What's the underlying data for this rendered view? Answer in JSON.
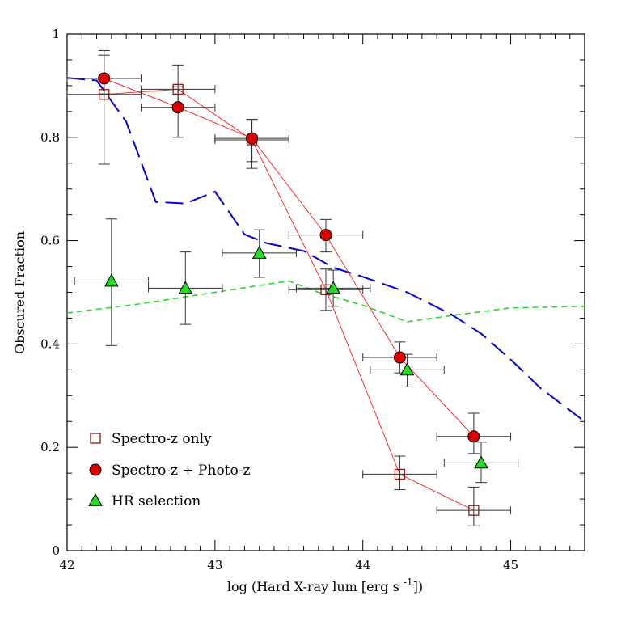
{
  "chart_data": {
    "type": "scatter",
    "title": "",
    "xlabel": "log (Hard X-ray lum [erg s ",
    "xlabel_sup": "-1",
    "xlabel_end": "])",
    "ylabel": "Obscured Fraction",
    "xlim": [
      42,
      45.5
    ],
    "ylim": [
      0,
      1
    ],
    "x_ticks": [
      "42",
      "43",
      "44",
      "45"
    ],
    "y_ticks": [
      "0",
      "0.2",
      "0.4",
      "0.6",
      "0.8",
      "1"
    ],
    "grid": false,
    "legend_position": "bottom-left",
    "series": [
      {
        "name": "Spectro-z only",
        "marker": "open-square",
        "color": "#8b1a1a",
        "line_color": "#ff2a2a",
        "points": [
          {
            "x": 42.25,
            "y": 0.883,
            "xerr": 0.25,
            "yerr_lo": 0.135,
            "yerr_hi": 0.085
          },
          {
            "x": 42.75,
            "y": 0.893,
            "xerr": 0.25,
            "yerr_lo": 0.035,
            "yerr_hi": 0.047
          },
          {
            "x": 43.25,
            "y": 0.795,
            "xerr": 0.25,
            "yerr_lo": 0.055,
            "yerr_hi": 0.04
          },
          {
            "x": 43.75,
            "y": 0.505,
            "xerr": 0.25,
            "yerr_lo": 0.04,
            "yerr_hi": 0.04
          },
          {
            "x": 44.25,
            "y": 0.148,
            "xerr": 0.25,
            "yerr_lo": 0.03,
            "yerr_hi": 0.035
          },
          {
            "x": 44.75,
            "y": 0.078,
            "xerr": 0.25,
            "yerr_lo": 0.03,
            "yerr_hi": 0.045
          }
        ]
      },
      {
        "name": "Spectro-z + Photo-z",
        "marker": "filled-circle",
        "color": "#dd0000",
        "line_color": "#ff2a2a",
        "points": [
          {
            "x": 42.25,
            "y": 0.914,
            "xerr": 0.25,
            "yerr_lo": 0.03,
            "yerr_hi": 0.045
          },
          {
            "x": 42.75,
            "y": 0.858,
            "xerr": 0.25,
            "yerr_lo": 0.058,
            "yerr_hi": 0.04
          },
          {
            "x": 43.25,
            "y": 0.798,
            "xerr": 0.25,
            "yerr_lo": 0.045,
            "yerr_hi": 0.035
          },
          {
            "x": 43.75,
            "y": 0.611,
            "xerr": 0.25,
            "yerr_lo": 0.033,
            "yerr_hi": 0.03
          },
          {
            "x": 44.25,
            "y": 0.374,
            "xerr": 0.25,
            "yerr_lo": 0.03,
            "yerr_hi": 0.03
          },
          {
            "x": 44.75,
            "y": 0.221,
            "xerr": 0.25,
            "yerr_lo": 0.033,
            "yerr_hi": 0.045
          }
        ]
      },
      {
        "name": "HR selection",
        "marker": "filled-triangle",
        "color": "#22dd22",
        "points": [
          {
            "x": 42.3,
            "y": 0.522,
            "xerr": 0.25,
            "yerr_lo": 0.125,
            "yerr_hi": 0.12
          },
          {
            "x": 42.8,
            "y": 0.508,
            "xerr": 0.25,
            "yerr_lo": 0.07,
            "yerr_hi": 0.07
          },
          {
            "x": 43.3,
            "y": 0.576,
            "xerr": 0.25,
            "yerr_lo": 0.047,
            "yerr_hi": 0.045
          },
          {
            "x": 43.8,
            "y": 0.508,
            "xerr": 0.25,
            "yerr_lo": 0.035,
            "yerr_hi": 0.035
          },
          {
            "x": 44.3,
            "y": 0.35,
            "xerr": 0.25,
            "yerr_lo": 0.033,
            "yerr_hi": 0.03
          },
          {
            "x": 44.8,
            "y": 0.17,
            "xerr": 0.25,
            "yerr_lo": 0.038,
            "yerr_hi": 0.04
          }
        ]
      }
    ],
    "model_curves": [
      {
        "style": "long-dash",
        "color": "#0000dd",
        "points": [
          [
            42.0,
            0.915
          ],
          [
            42.2,
            0.91
          ],
          [
            42.4,
            0.83
          ],
          [
            42.6,
            0.675
          ],
          [
            42.8,
            0.672
          ],
          [
            43.0,
            0.695
          ],
          [
            43.2,
            0.612
          ],
          [
            43.35,
            0.595
          ],
          [
            43.6,
            0.58
          ],
          [
            43.8,
            0.548
          ],
          [
            44.0,
            0.53
          ],
          [
            44.3,
            0.5
          ],
          [
            44.6,
            0.457
          ],
          [
            44.8,
            0.42
          ],
          [
            45.0,
            0.37
          ],
          [
            45.2,
            0.315
          ],
          [
            45.5,
            0.25
          ]
        ]
      },
      {
        "style": "short-dash",
        "color": "#22dd22",
        "points": [
          [
            42.0,
            0.46
          ],
          [
            42.5,
            0.478
          ],
          [
            43.0,
            0.5
          ],
          [
            43.5,
            0.522
          ],
          [
            43.7,
            0.5
          ],
          [
            44.0,
            0.475
          ],
          [
            44.3,
            0.443
          ],
          [
            44.6,
            0.455
          ],
          [
            45.0,
            0.47
          ],
          [
            45.5,
            0.473
          ]
        ]
      }
    ]
  }
}
